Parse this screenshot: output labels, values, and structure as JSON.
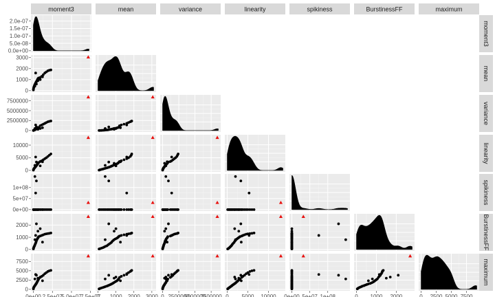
{
  "chart_data": {
    "type": "scatter-matrix",
    "variables": [
      "moment3",
      "mean",
      "variance",
      "linearity",
      "spikiness",
      "BurstinessFF",
      "maximum"
    ],
    "colors": {
      "panel_bg": "#ebebeb",
      "grid_major": "#ffffff",
      "grid_minor": "#f5f5f5",
      "strip_bg": "#d9d9d9",
      "point": "#000000",
      "outlier": "#e8110f",
      "density_fill": "#000000"
    },
    "axes": {
      "moment3": {
        "range": [
          0,
          73000000
        ],
        "ticks": [
          0,
          25000000,
          50000000,
          75000000
        ],
        "tick_labels": [
          "0e+00",
          "2.5e+07",
          "5.0e+07",
          "7.5e+07"
        ]
      },
      "mean": {
        "range": [
          0,
          3100
        ],
        "ticks": [
          0,
          1000,
          2000,
          3000
        ],
        "tick_labels": [
          "0",
          "1000",
          "2000",
          "3000"
        ]
      },
      "variance": {
        "range": [
          0,
          8600000
        ],
        "ticks": [
          0,
          2500000,
          5000000,
          7500000
        ],
        "tick_labels": [
          "0",
          "2500000",
          "5000000",
          "7500000"
        ]
      },
      "linearity": {
        "range": [
          0,
          13500
        ],
        "ticks": [
          0,
          5000,
          10000
        ],
        "tick_labels": [
          "0",
          "5000",
          "10000"
        ]
      },
      "spikiness": {
        "range": [
          0,
          155000000
        ],
        "ticks": [
          0,
          50000000,
          100000000
        ],
        "tick_labels": [
          "0e+00",
          "5e+07",
          "1e+08"
        ]
      },
      "BurstinessFF": {
        "range": [
          0,
          2800
        ],
        "ticks": [
          0,
          1000,
          2000
        ],
        "tick_labels": [
          "0",
          "1000",
          "2000"
        ]
      },
      "maximum": {
        "range": [
          0,
          9200
        ],
        "ticks": [
          0,
          2500,
          5000,
          7500
        ],
        "tick_labels": [
          "0",
          "2500",
          "5000",
          "7500"
        ]
      }
    },
    "density_axis": {
      "ticks": [
        0,
        5e-08,
        1e-07,
        1.5e-07,
        2e-07
      ],
      "tick_labels": [
        "0.0e+00",
        "5.0e-08",
        "1.0e-07",
        "1.5e-07",
        "2.0e-07"
      ],
      "range": [
        0,
        2.3e-07
      ]
    },
    "outlier": {
      "moment3": 72000000,
      "mean": 3050,
      "variance": 8450000,
      "linearity": 13000,
      "spikiness": 32000000,
      "BurstinessFF": 2700,
      "maximum": 9000
    },
    "points": [
      {
        "moment3": 50000,
        "mean": 60,
        "variance": 5000,
        "linearity": 100,
        "spikiness": 2,
        "BurstinessFF": 40,
        "maximum": 120
      },
      {
        "moment3": 120000,
        "mean": 120,
        "variance": 15000,
        "linearity": 250,
        "spikiness": 5,
        "BurstinessFF": 70,
        "maximum": 250
      },
      {
        "moment3": 300000,
        "mean": 200,
        "variance": 30000,
        "linearity": 400,
        "spikiness": 12,
        "BurstinessFF": 110,
        "maximum": 380
      },
      {
        "moment3": 500000,
        "mean": 280,
        "variance": 60000,
        "linearity": 550,
        "spikiness": 20,
        "BurstinessFF": 150,
        "maximum": 500
      },
      {
        "moment3": 800000,
        "mean": 350,
        "variance": 90000,
        "linearity": 700,
        "spikiness": 35,
        "BurstinessFF": 200,
        "maximum": 620
      },
      {
        "moment3": 1200000,
        "mean": 420,
        "variance": 120000,
        "linearity": 850,
        "spikiness": 60,
        "BurstinessFF": 260,
        "maximum": 750
      },
      {
        "moment3": 1600000,
        "mean": 500,
        "variance": 150000,
        "linearity": 1000,
        "spikiness": 80,
        "BurstinessFF": 300,
        "maximum": 880
      },
      {
        "moment3": 2000000,
        "mean": 560,
        "variance": 180000,
        "linearity": 1150,
        "spikiness": 100,
        "BurstinessFF": 380,
        "maximum": 1000
      },
      {
        "moment3": 2500000,
        "mean": 630,
        "variance": 250000,
        "linearity": 1300,
        "spikiness": 150,
        "BurstinessFF": 450,
        "maximum": 1150
      },
      {
        "moment3": 3000000,
        "mean": 700,
        "variance": 300000,
        "linearity": 1500,
        "spikiness": 200,
        "BurstinessFF": 520,
        "maximum": 1300
      },
      {
        "moment3": 3500000,
        "mean": 760,
        "variance": 350000,
        "linearity": 1700,
        "spikiness": 250,
        "BurstinessFF": 600,
        "maximum": 1450
      },
      {
        "moment3": 4000000,
        "mean": 820,
        "variance": 400000,
        "linearity": 1900,
        "spikiness": 300,
        "BurstinessFF": 700,
        "maximum": 1600
      },
      {
        "moment3": 4500000,
        "mean": 880,
        "variance": 500000,
        "linearity": 2100,
        "spikiness": 400,
        "BurstinessFF": 780,
        "maximum": 1800
      },
      {
        "moment3": 5000000,
        "mean": 950,
        "variance": 550000,
        "linearity": 2300,
        "spikiness": 500,
        "BurstinessFF": 850,
        "maximum": 2000
      },
      {
        "moment3": 5500000,
        "mean": 1020,
        "variance": 600000,
        "linearity": 2500,
        "spikiness": 600,
        "BurstinessFF": 900,
        "maximum": 2200
      },
      {
        "moment3": 6000000,
        "mean": 1080,
        "variance": 700000,
        "linearity": 2700,
        "spikiness": 700,
        "BurstinessFF": 950,
        "maximum": 2400
      },
      {
        "moment3": 6500000,
        "mean": 1120,
        "variance": 750000,
        "linearity": 2900,
        "spikiness": 800,
        "BurstinessFF": 1000,
        "maximum": 2600
      },
      {
        "moment3": 7000000,
        "mean": 1150,
        "variance": 800000,
        "linearity": 3100,
        "spikiness": 900,
        "BurstinessFF": 1050,
        "maximum": 2800
      },
      {
        "moment3": 9000000,
        "mean": 1200,
        "variance": 1200000,
        "linearity": 3500,
        "spikiness": 1200,
        "BurstinessFF": 1100,
        "maximum": 3200
      },
      {
        "moment3": 11000000,
        "mean": 1300,
        "variance": 1400000,
        "linearity": 3800,
        "spikiness": 1500,
        "BurstinessFF": 1150,
        "maximum": 3500
      },
      {
        "moment3": 13000000,
        "mean": 1450,
        "variance": 1600000,
        "linearity": 4200,
        "spikiness": 2000,
        "BurstinessFF": 1200,
        "maximum": 3800
      },
      {
        "moment3": 15000000,
        "mean": 1600,
        "variance": 1800000,
        "linearity": 4600,
        "spikiness": 2500,
        "BurstinessFF": 1250,
        "maximum": 4200
      },
      {
        "moment3": 17000000,
        "mean": 1700,
        "variance": 2000000,
        "linearity": 5000,
        "spikiness": 3000,
        "BurstinessFF": 1280,
        "maximum": 4500
      },
      {
        "moment3": 19000000,
        "mean": 1800,
        "variance": 2200000,
        "linearity": 5500,
        "spikiness": 3500,
        "BurstinessFF": 1300,
        "maximum": 4800
      },
      {
        "moment3": 21000000,
        "mean": 1850,
        "variance": 2300000,
        "linearity": 6000,
        "spikiness": 4000,
        "BurstinessFF": 1320,
        "maximum": 5000
      },
      {
        "moment3": 23000000,
        "mean": 1880,
        "variance": 2400000,
        "linearity": 6500,
        "spikiness": 5000,
        "BurstinessFF": 1350,
        "maximum": 5100
      },
      {
        "moment3": 4000000,
        "mean": 600,
        "variance": 900000,
        "linearity": 3300,
        "spikiness": 130000000,
        "BurstinessFF": 2100,
        "maximum": 3800
      },
      {
        "moment3": 3000000,
        "mean": 1600,
        "variance": 1400000,
        "linearity": 5300,
        "spikiness": 75000000,
        "BurstinessFF": 1150,
        "maximum": 4000
      },
      {
        "moment3": 2000000,
        "mean": 400,
        "variance": 500000,
        "linearity": 2000,
        "spikiness": 150000000,
        "BurstinessFF": 800,
        "maximum": 2800
      },
      {
        "moment3": 6000000,
        "mean": 900,
        "variance": 300000,
        "linearity": 2800,
        "spikiness": 1000,
        "BurstinessFF": 1500,
        "maximum": 3000
      },
      {
        "moment3": 9000000,
        "mean": 1000,
        "variance": 500000,
        "linearity": 1800,
        "spikiness": 1500,
        "BurstinessFF": 1700,
        "maximum": 3300
      },
      {
        "moment3": 12000000,
        "mean": 1250,
        "variance": 700000,
        "linearity": 3400,
        "spikiness": 2200,
        "BurstinessFF": 600,
        "maximum": 2300
      }
    ]
  }
}
